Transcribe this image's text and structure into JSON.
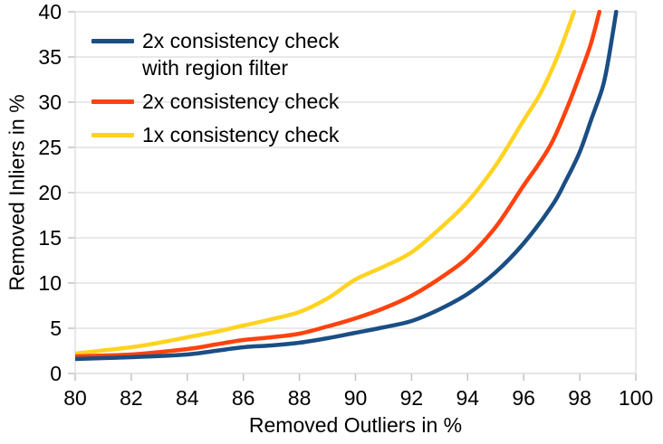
{
  "chart_data": {
    "type": "line",
    "title": "",
    "xlabel": "Removed Outliers in %",
    "ylabel": "Removed Inliers in %",
    "xlim": [
      80,
      100
    ],
    "ylim": [
      0,
      40
    ],
    "x_ticks": [
      80,
      82,
      84,
      86,
      88,
      90,
      92,
      94,
      96,
      98,
      100
    ],
    "y_ticks": [
      0,
      5,
      10,
      15,
      20,
      25,
      30,
      35,
      40
    ],
    "grid": "horizontal-only",
    "legend_position": "top-left-inside",
    "background_color": "#ffffff",
    "grid_color": "#dcdcdc",
    "tick_color": "#c2c2c2",
    "series": [
      {
        "name": "2x consistency check with region filter",
        "color": "#1A4E84",
        "points": [
          [
            80,
            1.6
          ],
          [
            82,
            1.8
          ],
          [
            84,
            2.1
          ],
          [
            85,
            2.5
          ],
          [
            86,
            2.9
          ],
          [
            87,
            3.1
          ],
          [
            88,
            3.4
          ],
          [
            89,
            3.9
          ],
          [
            90,
            4.5
          ],
          [
            91,
            5.1
          ],
          [
            92,
            5.8
          ],
          [
            93,
            7.1
          ],
          [
            94,
            8.8
          ],
          [
            95,
            11.2
          ],
          [
            96,
            14.4
          ],
          [
            97,
            18.5
          ],
          [
            97.5,
            21.3
          ],
          [
            98,
            24.5
          ],
          [
            98.4,
            28
          ],
          [
            98.8,
            31.5
          ],
          [
            99.0,
            34.3
          ],
          [
            99.3,
            40
          ]
        ]
      },
      {
        "name": "2x consistency check",
        "color": "#FF420E",
        "points": [
          [
            80,
            1.9
          ],
          [
            82,
            2.1
          ],
          [
            84,
            2.7
          ],
          [
            85,
            3.2
          ],
          [
            86,
            3.7
          ],
          [
            87,
            4.0
          ],
          [
            88,
            4.4
          ],
          [
            89,
            5.2
          ],
          [
            90,
            6.1
          ],
          [
            91,
            7.2
          ],
          [
            92,
            8.6
          ],
          [
            93,
            10.5
          ],
          [
            94,
            12.8
          ],
          [
            95,
            16.2
          ],
          [
            96,
            20.8
          ],
          [
            96.5,
            23.0
          ],
          [
            97,
            25.5
          ],
          [
            97.5,
            29.0
          ],
          [
            98,
            33.0
          ],
          [
            98.4,
            36.5
          ],
          [
            98.7,
            40
          ]
        ]
      },
      {
        "name": "1x consistency check",
        "color": "#FFD320",
        "points": [
          [
            80,
            2.2
          ],
          [
            82,
            2.9
          ],
          [
            83,
            3.4
          ],
          [
            84,
            4.0
          ],
          [
            85,
            4.6
          ],
          [
            86,
            5.3
          ],
          [
            87,
            6.0
          ],
          [
            88,
            6.8
          ],
          [
            89,
            8.3
          ],
          [
            90,
            10.4
          ],
          [
            91,
            11.8
          ],
          [
            92,
            13.4
          ],
          [
            93,
            16.0
          ],
          [
            94,
            19.0
          ],
          [
            95,
            23.0
          ],
          [
            96,
            28.0
          ],
          [
            96.6,
            31.0
          ],
          [
            97.2,
            35.0
          ],
          [
            97.8,
            40
          ]
        ]
      }
    ]
  }
}
